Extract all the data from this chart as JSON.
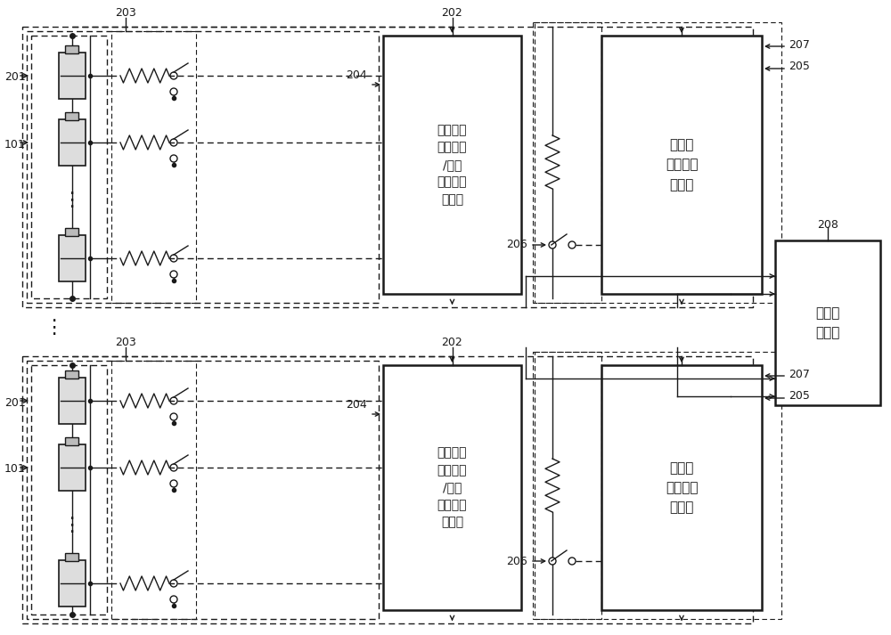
{
  "bg_color": "#ffffff",
  "lc": "#1a1a1a",
  "text_204": "单元电压\n检测电路\n/单元\n放电电路\n控制部",
  "text_205": "电池组\n放电电路\n控制部",
  "text_208": "蓄电池\n控制器",
  "label_201": "201",
  "label_101": "101",
  "label_202": "202",
  "label_203": "203",
  "label_204": "204",
  "label_205": "205",
  "label_206": "206",
  "label_207": "207",
  "label_208": "208"
}
